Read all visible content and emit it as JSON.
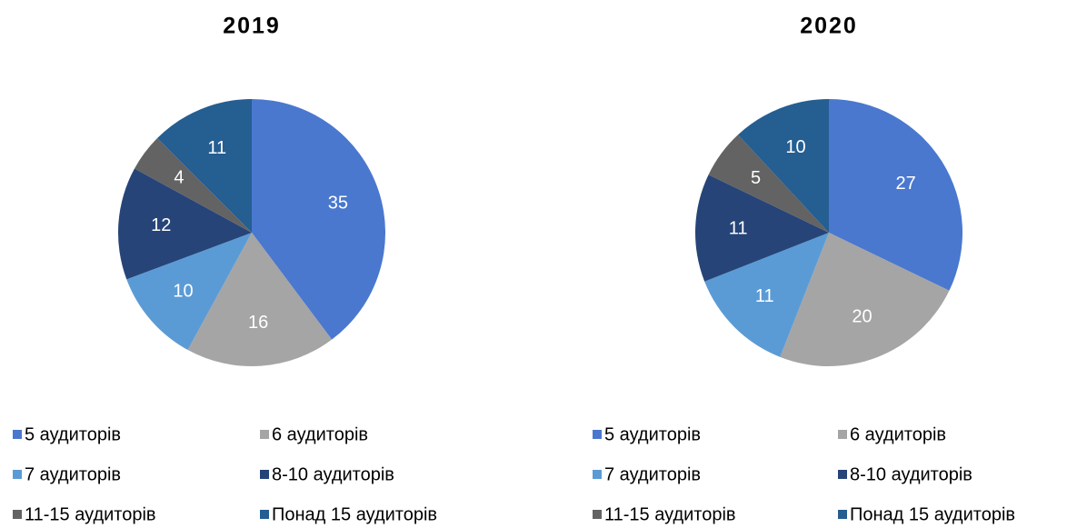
{
  "chart_data": [
    {
      "type": "pie",
      "title": "2019",
      "categories": [
        "5 аудиторів",
        "6 аудиторів",
        "7 аудиторів",
        "8-10 аудиторів",
        "11-15 аудиторів",
        "Понад 15 аудиторів"
      ],
      "values": [
        35,
        16,
        10,
        12,
        4,
        11
      ],
      "colors": [
        "#4a78cf",
        "#a5a5a5",
        "#5b9bd5",
        "#264478",
        "#636363",
        "#255e91"
      ]
    },
    {
      "type": "pie",
      "title": "2020",
      "categories": [
        "5 аудиторів",
        "6 аудиторів",
        "7 аудиторів",
        "8-10 аудиторів",
        "11-15 аудиторів",
        "Понад 15 аудиторів"
      ],
      "values": [
        27,
        20,
        11,
        11,
        5,
        10
      ],
      "colors": [
        "#4a78cf",
        "#a5a5a5",
        "#5b9bd5",
        "#264478",
        "#636363",
        "#255e91"
      ]
    }
  ]
}
